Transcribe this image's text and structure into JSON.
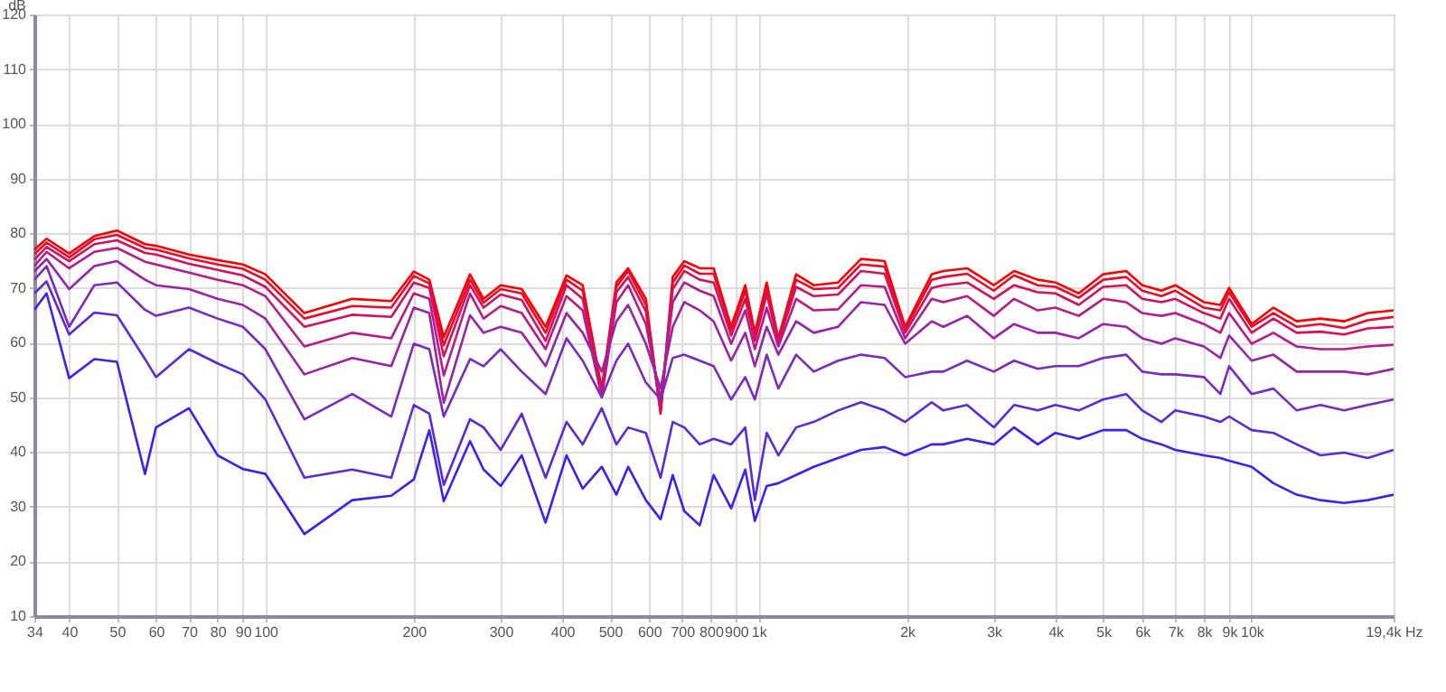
{
  "chart_data": {
    "type": "line",
    "ylabel": "dB",
    "log": "x",
    "grid": true,
    "xlim": [
      34,
      19400
    ],
    "ylim": [
      10,
      120
    ],
    "xticks": [
      34,
      40,
      50,
      60,
      70,
      80,
      90,
      100,
      200,
      300,
      400,
      500,
      600,
      700,
      800,
      900,
      {
        "value": 1000,
        "label": "1k"
      },
      {
        "value": 2000,
        "label": "2k"
      },
      {
        "value": 3000,
        "label": "3k"
      },
      {
        "value": 4000,
        "label": "4k"
      },
      {
        "value": 5000,
        "label": "5k"
      },
      {
        "value": 6000,
        "label": "6k"
      },
      {
        "value": 7000,
        "label": "7k"
      },
      {
        "value": 8000,
        "label": "8k"
      },
      {
        "value": 9000,
        "label": "9k"
      },
      {
        "value": 10000,
        "label": "10k"
      },
      {
        "value": 19400,
        "label": "19,4k Hz"
      }
    ],
    "yticks": [
      10,
      20,
      30,
      40,
      50,
      60,
      70,
      80,
      90,
      100,
      110,
      120
    ],
    "x": [
      34,
      36,
      40,
      45,
      50,
      57,
      60,
      70,
      80,
      90,
      100,
      120,
      150,
      180,
      200,
      215,
      230,
      260,
      277,
      300,
      331,
      370,
      408,
      440,
      481,
      515,
      544,
      591,
      633,
      670,
      707,
      760,
      811,
      880,
      940,
      983,
      1039,
      1097,
      1192,
      1294,
      1450,
      1614,
      1802,
      1983,
      2245,
      2370,
      2648,
      3000,
      3298,
      3683,
      4000,
      4460,
      5000,
      5566,
      6000,
      6563,
      7000,
      8000,
      8640,
      9000,
      10000,
      11070,
      12340,
      13790,
      15400,
      17190,
      19400
    ],
    "series": [
      {
        "color": "#ff0000",
        "values": [
          77,
          79,
          76.3,
          79.5,
          80.5,
          78,
          77.7,
          76.1,
          75.1,
          74.3,
          72.5,
          65.4,
          68,
          67.6,
          73,
          71.5,
          61,
          72.5,
          68,
          70.5,
          69.8,
          62.9,
          72.3,
          70.5,
          51.6,
          71,
          73.6,
          68,
          47,
          72,
          74.9,
          73.6,
          73.6,
          62.9,
          70.5,
          61.8,
          71,
          60.8,
          72.5,
          70.5,
          71,
          75.3,
          74.9,
          62.9,
          72.5,
          73.1,
          73.6,
          70.5,
          73.1,
          71.5,
          71,
          69,
          72.5,
          73.1,
          70.5,
          69.5,
          70.5,
          67.4,
          66.9,
          70,
          63.4,
          66.4,
          63.9,
          64.4,
          63.9,
          65.4,
          65.9
        ]
      },
      {
        "color": "#ea0a2a",
        "values": [
          76.2,
          78.3,
          75.6,
          78.9,
          79.7,
          77.3,
          77,
          75.4,
          74.3,
          73.5,
          71.5,
          64.4,
          66.7,
          66.4,
          72.2,
          70.8,
          59.5,
          71.5,
          67.3,
          69.8,
          69,
          61.8,
          71.5,
          69.5,
          51.1,
          70.2,
          73.1,
          66.9,
          47.6,
          71,
          74.1,
          72.6,
          72.6,
          62.3,
          69.5,
          61.3,
          70,
          60.6,
          71.5,
          69.8,
          70,
          74.3,
          73.9,
          62.4,
          71.5,
          72,
          72.6,
          69.5,
          72.3,
          70.5,
          70.2,
          68.2,
          71.5,
          72,
          69.5,
          68.5,
          69.5,
          66.4,
          65.9,
          69.2,
          62.9,
          65.4,
          62.9,
          63.4,
          62.7,
          64.1,
          64.7
        ]
      },
      {
        "color": "#d6105a",
        "values": [
          75.2,
          77.5,
          74.9,
          78,
          78.7,
          76.4,
          76.1,
          74.4,
          73.3,
          72.3,
          70.2,
          62.9,
          65.1,
          64.7,
          71,
          70,
          57.5,
          70.5,
          66.4,
          68.8,
          67.8,
          60.3,
          70.5,
          68,
          50.6,
          69.2,
          72,
          65.7,
          47.6,
          69.8,
          73.1,
          71.5,
          71,
          61.3,
          68,
          60.3,
          68.8,
          60,
          70.2,
          68.5,
          68.8,
          73.1,
          72.6,
          61.8,
          70,
          70.5,
          71,
          68,
          70.5,
          69.2,
          69,
          66.9,
          70.2,
          70.5,
          68,
          67.4,
          68,
          65.4,
          64.4,
          68,
          61.8,
          64.4,
          61.8,
          62,
          61.5,
          62.6,
          62.9
        ]
      },
      {
        "color": "#b81a88",
        "values": [
          74,
          76.6,
          73.6,
          76.6,
          77.3,
          74.8,
          74.3,
          72.8,
          71.5,
          70.5,
          68.5,
          59.3,
          61.8,
          60.8,
          69,
          68,
          54,
          69,
          64.4,
          66.7,
          65.4,
          58.8,
          68.5,
          65.9,
          50,
          67.4,
          70.5,
          63.4,
          49.6,
          67.4,
          71,
          69.5,
          68.5,
          59.8,
          65.9,
          58.8,
          66.4,
          59.3,
          68,
          65.9,
          66.1,
          70.5,
          70.2,
          60.8,
          68,
          67.4,
          68.5,
          64.9,
          68,
          65.9,
          66.4,
          64.9,
          68,
          67.4,
          65.4,
          64.9,
          65.4,
          63.4,
          61.8,
          65.4,
          59.8,
          61.8,
          59.3,
          58.8,
          58.8,
          59.3,
          59.6
        ]
      },
      {
        "color": "#9a22a8",
        "values": [
          73,
          75.3,
          69.8,
          74,
          74.9,
          71.5,
          70.5,
          69.8,
          68,
          66.9,
          64.4,
          54.2,
          57.2,
          55.7,
          66.4,
          65.4,
          49,
          65,
          61.8,
          62.9,
          61.8,
          55.7,
          65.4,
          61.8,
          54.7,
          63.9,
          66.9,
          59.8,
          51.6,
          62.9,
          67.4,
          65.9,
          63.9,
          56.7,
          61.8,
          55.7,
          62.9,
          57.8,
          63.9,
          61.8,
          62.9,
          67.4,
          66.9,
          59.8,
          63.9,
          62.9,
          64.9,
          60.8,
          63.4,
          61.8,
          61.8,
          60.8,
          63.4,
          62.9,
          60.8,
          59.8,
          60.8,
          59.3,
          57.2,
          61.3,
          56.7,
          57.8,
          54.7,
          54.7,
          54.7,
          54.2,
          55.2
        ]
      },
      {
        "color": "#7a2ac0",
        "values": [
          71.5,
          74,
          62.9,
          70.5,
          71,
          66,
          64.9,
          66.4,
          64.4,
          62.9,
          58.8,
          46,
          50.6,
          46.5,
          59.8,
          58.8,
          46.5,
          57,
          55.7,
          58.8,
          54.7,
          50.6,
          60.8,
          56.7,
          50,
          56.7,
          59.8,
          52.7,
          49.6,
          57.2,
          57.8,
          56.7,
          55.7,
          49.6,
          53.7,
          49.6,
          57.8,
          51.6,
          57.8,
          54.7,
          56.7,
          57.8,
          57.2,
          53.7,
          54.7,
          54.7,
          56.7,
          54.7,
          56.7,
          55.2,
          55.7,
          55.7,
          57.2,
          57.8,
          54.7,
          54.2,
          54.2,
          53.7,
          50.6,
          55.7,
          50.6,
          51.6,
          47.6,
          48.6,
          47.6,
          48.6,
          49.6
        ]
      },
      {
        "color": "#5a2ad8",
        "values": [
          69,
          71.2,
          61.5,
          65.5,
          65,
          57,
          53.7,
          58.8,
          56.2,
          54.2,
          49.6,
          35.3,
          36.8,
          35.3,
          48.6,
          47,
          34,
          46,
          44.5,
          40.4,
          47,
          35.3,
          45.5,
          41.4,
          48,
          41.4,
          44.5,
          43.5,
          35.3,
          45.5,
          44.5,
          41.4,
          42.4,
          41.4,
          44.5,
          31.2,
          43.5,
          39.4,
          44.5,
          45.5,
          47.6,
          49.1,
          47.6,
          45.5,
          49.1,
          47.6,
          48.6,
          44.5,
          48.6,
          47.6,
          48.6,
          47.6,
          49.6,
          50.6,
          47.6,
          45.5,
          47.6,
          46.5,
          45.5,
          46.5,
          44,
          43.5,
          41.4,
          39.4,
          39.9,
          38.9,
          40.4
        ]
      },
      {
        "color": "#3a22f0",
        "values": [
          66,
          69,
          53.5,
          57,
          56.5,
          36,
          44.5,
          48,
          39.4,
          36.9,
          36,
          25,
          31.2,
          32,
          35,
          44,
          31,
          42,
          36.8,
          33.8,
          39.4,
          27.1,
          39.4,
          33.3,
          37.3,
          32.2,
          37.3,
          31.2,
          27.7,
          35.8,
          29.2,
          26.6,
          35.8,
          29.7,
          36.8,
          27.4,
          33.8,
          34.3,
          35.8,
          37.3,
          38.9,
          40.4,
          40.9,
          39.4,
          41.4,
          41.4,
          42.4,
          41.4,
          44.5,
          41.4,
          43.5,
          42.4,
          44,
          44,
          42.4,
          41.4,
          40.4,
          39.4,
          38.9,
          38.4,
          37.3,
          34.3,
          32.2,
          31.2,
          30.7,
          31.2,
          32.2
        ]
      }
    ]
  }
}
